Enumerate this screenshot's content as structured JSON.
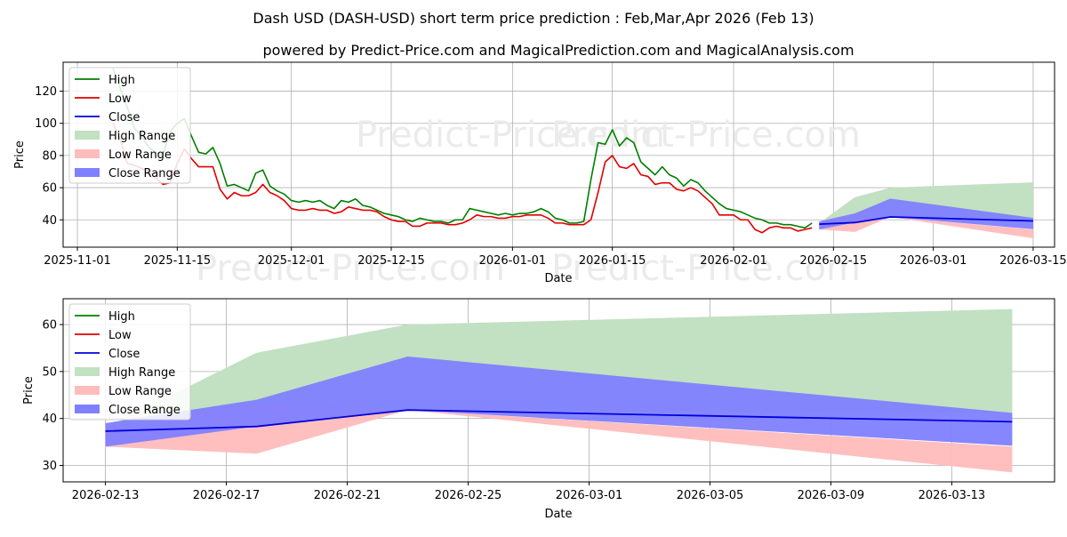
{
  "title": "Dash USD (DASH-USD) short term price prediction : Feb,Mar,Apr 2026 (Feb 13)",
  "subtitle": "powered by Predict-Price.com and MagicalPrediction.com and MagicalAnalysis.com",
  "watermark": "Predict-Price.com",
  "colors": {
    "high": "#007f00",
    "low": "#e00000",
    "close": "#0000dd",
    "high_range": "#c2e0c2",
    "low_range": "#ffbcbc",
    "close_range": "#8080ff"
  },
  "chart_data": [
    {
      "type": "line",
      "name": "full-history",
      "xlabel": "Date",
      "ylabel": "Price",
      "x_range": [
        "2025-10-30",
        "2026-03-18"
      ],
      "ylim": [
        23,
        138
      ],
      "x_ticks": [
        "2025-11-01",
        "2025-11-15",
        "2025-12-01",
        "2025-12-15",
        "2026-01-01",
        "2026-01-15",
        "2026-02-01",
        "2026-02-15",
        "2026-03-01",
        "2026-03-15"
      ],
      "y_ticks": [
        40,
        60,
        80,
        100,
        120
      ],
      "grid": true,
      "legend": [
        "High",
        "Low",
        "Close",
        "High Range",
        "Low Range",
        "Close Range"
      ],
      "legend_position": "top-left",
      "series": [
        {
          "name": "High",
          "points": [
            [
              "2025-11-06",
              134
            ],
            [
              "2025-11-07",
              122
            ],
            [
              "2025-11-08",
              110
            ],
            [
              "2025-11-09",
              97
            ],
            [
              "2025-11-10",
              92
            ],
            [
              "2025-11-11",
              85
            ],
            [
              "2025-11-12",
              82
            ],
            [
              "2025-11-13",
              80
            ],
            [
              "2025-11-14",
              95
            ],
            [
              "2025-11-15",
              100
            ],
            [
              "2025-11-16",
              103
            ],
            [
              "2025-11-17",
              92
            ],
            [
              "2025-11-18",
              82
            ],
            [
              "2025-11-19",
              81
            ],
            [
              "2025-11-20",
              85
            ],
            [
              "2025-11-21",
              75
            ],
            [
              "2025-11-22",
              61
            ],
            [
              "2025-11-23",
              62
            ],
            [
              "2025-11-24",
              60
            ],
            [
              "2025-11-25",
              58
            ],
            [
              "2025-11-26",
              69
            ],
            [
              "2025-11-27",
              71
            ],
            [
              "2025-11-28",
              61
            ],
            [
              "2025-11-29",
              58
            ],
            [
              "2025-11-30",
              56
            ],
            [
              "2025-12-01",
              52
            ],
            [
              "2025-12-02",
              51
            ],
            [
              "2025-12-03",
              52
            ],
            [
              "2025-12-04",
              51
            ],
            [
              "2025-12-05",
              52
            ],
            [
              "2025-12-06",
              49
            ],
            [
              "2025-12-07",
              47
            ],
            [
              "2025-12-08",
              52
            ],
            [
              "2025-12-09",
              51
            ],
            [
              "2025-12-10",
              53
            ],
            [
              "2025-12-11",
              49
            ],
            [
              "2025-12-12",
              48
            ],
            [
              "2025-12-13",
              46
            ],
            [
              "2025-12-14",
              44
            ],
            [
              "2025-12-15",
              43
            ],
            [
              "2025-12-16",
              42
            ],
            [
              "2025-12-17",
              40
            ],
            [
              "2025-12-18",
              39
            ],
            [
              "2025-12-19",
              41
            ],
            [
              "2025-12-20",
              40
            ],
            [
              "2025-12-21",
              39
            ],
            [
              "2025-12-22",
              39
            ],
            [
              "2025-12-23",
              38
            ],
            [
              "2025-12-24",
              40
            ],
            [
              "2025-12-25",
              40
            ],
            [
              "2025-12-26",
              47
            ],
            [
              "2025-12-27",
              46
            ],
            [
              "2025-12-28",
              45
            ],
            [
              "2025-12-29",
              44
            ],
            [
              "2025-12-30",
              43
            ],
            [
              "2025-12-31",
              44
            ],
            [
              "2026-01-01",
              43
            ],
            [
              "2026-01-02",
              44
            ],
            [
              "2026-01-03",
              44
            ],
            [
              "2026-01-04",
              45
            ],
            [
              "2026-01-05",
              47
            ],
            [
              "2026-01-06",
              45
            ],
            [
              "2026-01-07",
              41
            ],
            [
              "2026-01-08",
              40
            ],
            [
              "2026-01-09",
              38
            ],
            [
              "2026-01-10",
              38
            ],
            [
              "2026-01-11",
              39
            ],
            [
              "2026-01-12",
              65
            ],
            [
              "2026-01-13",
              88
            ],
            [
              "2026-01-14",
              87
            ],
            [
              "2026-01-15",
              96
            ],
            [
              "2026-01-16",
              86
            ],
            [
              "2026-01-17",
              91
            ],
            [
              "2026-01-18",
              88
            ],
            [
              "2026-01-19",
              76
            ],
            [
              "2026-01-20",
              72
            ],
            [
              "2026-01-21",
              68
            ],
            [
              "2026-01-22",
              73
            ],
            [
              "2026-01-23",
              68
            ],
            [
              "2026-01-24",
              66
            ],
            [
              "2026-01-25",
              61
            ],
            [
              "2026-01-26",
              65
            ],
            [
              "2026-01-27",
              63
            ],
            [
              "2026-01-28",
              58
            ],
            [
              "2026-01-29",
              54
            ],
            [
              "2026-01-30",
              50
            ],
            [
              "2026-01-31",
              47
            ],
            [
              "2026-02-01",
              46
            ],
            [
              "2026-02-02",
              45
            ],
            [
              "2026-02-03",
              43
            ],
            [
              "2026-02-04",
              41
            ],
            [
              "2026-02-05",
              40
            ],
            [
              "2026-02-06",
              38
            ],
            [
              "2026-02-07",
              38
            ],
            [
              "2026-02-08",
              37
            ],
            [
              "2026-02-09",
              37
            ],
            [
              "2026-02-10",
              36
            ],
            [
              "2026-02-11",
              35
            ],
            [
              "2026-02-12",
              38
            ]
          ]
        },
        {
          "name": "Low",
          "points": [
            [
              "2025-11-06",
              100
            ],
            [
              "2025-11-07",
              90
            ],
            [
              "2025-11-08",
              75
            ],
            [
              "2025-11-09",
              74
            ],
            [
              "2025-11-10",
              72
            ],
            [
              "2025-11-11",
              70
            ],
            [
              "2025-11-12",
              66
            ],
            [
              "2025-11-13",
              62
            ],
            [
              "2025-11-14",
              63
            ],
            [
              "2025-11-15",
              75
            ],
            [
              "2025-11-16",
              84
            ],
            [
              "2025-11-17",
              78
            ],
            [
              "2025-11-18",
              73
            ],
            [
              "2025-11-19",
              73
            ],
            [
              "2025-11-20",
              73
            ],
            [
              "2025-11-21",
              59
            ],
            [
              "2025-11-22",
              53
            ],
            [
              "2025-11-23",
              57
            ],
            [
              "2025-11-24",
              55
            ],
            [
              "2025-11-25",
              55
            ],
            [
              "2025-11-26",
              57
            ],
            [
              "2025-11-27",
              62
            ],
            [
              "2025-11-28",
              57
            ],
            [
              "2025-11-29",
              55
            ],
            [
              "2025-11-30",
              52
            ],
            [
              "2025-12-01",
              47
            ],
            [
              "2025-12-02",
              46
            ],
            [
              "2025-12-03",
              46
            ],
            [
              "2025-12-04",
              47
            ],
            [
              "2025-12-05",
              46
            ],
            [
              "2025-12-06",
              46
            ],
            [
              "2025-12-07",
              44
            ],
            [
              "2025-12-08",
              45
            ],
            [
              "2025-12-09",
              48
            ],
            [
              "2025-12-10",
              47
            ],
            [
              "2025-12-11",
              46
            ],
            [
              "2025-12-12",
              46
            ],
            [
              "2025-12-13",
              45
            ],
            [
              "2025-12-14",
              42
            ],
            [
              "2025-12-15",
              40
            ],
            [
              "2025-12-16",
              39
            ],
            [
              "2025-12-17",
              39
            ],
            [
              "2025-12-18",
              36
            ],
            [
              "2025-12-19",
              36
            ],
            [
              "2025-12-20",
              38
            ],
            [
              "2025-12-21",
              38
            ],
            [
              "2025-12-22",
              38
            ],
            [
              "2025-12-23",
              37
            ],
            [
              "2025-12-24",
              37
            ],
            [
              "2025-12-25",
              38
            ],
            [
              "2025-12-26",
              40
            ],
            [
              "2025-12-27",
              43
            ],
            [
              "2025-12-28",
              42
            ],
            [
              "2025-12-29",
              42
            ],
            [
              "2025-12-30",
              41
            ],
            [
              "2025-12-31",
              41
            ],
            [
              "2026-01-01",
              42
            ],
            [
              "2026-01-02",
              42
            ],
            [
              "2026-01-03",
              43
            ],
            [
              "2026-01-04",
              43
            ],
            [
              "2026-01-05",
              43
            ],
            [
              "2026-01-06",
              41
            ],
            [
              "2026-01-07",
              38
            ],
            [
              "2026-01-08",
              38
            ],
            [
              "2026-01-09",
              37
            ],
            [
              "2026-01-10",
              37
            ],
            [
              "2026-01-11",
              37
            ],
            [
              "2026-01-12",
              40
            ],
            [
              "2026-01-13",
              57
            ],
            [
              "2026-01-14",
              76
            ],
            [
              "2026-01-15",
              80
            ],
            [
              "2026-01-16",
              73
            ],
            [
              "2026-01-17",
              72
            ],
            [
              "2026-01-18",
              75
            ],
            [
              "2026-01-19",
              68
            ],
            [
              "2026-01-20",
              67
            ],
            [
              "2026-01-21",
              62
            ],
            [
              "2026-01-22",
              63
            ],
            [
              "2026-01-23",
              63
            ],
            [
              "2026-01-24",
              59
            ],
            [
              "2026-01-25",
              58
            ],
            [
              "2026-01-26",
              60
            ],
            [
              "2026-01-27",
              58
            ],
            [
              "2026-01-28",
              54
            ],
            [
              "2026-01-29",
              50
            ],
            [
              "2026-01-30",
              43
            ],
            [
              "2026-01-31",
              43
            ],
            [
              "2026-02-01",
              43
            ],
            [
              "2026-02-02",
              40
            ],
            [
              "2026-02-03",
              40
            ],
            [
              "2026-02-04",
              34
            ],
            [
              "2026-02-05",
              32
            ],
            [
              "2026-02-06",
              35
            ],
            [
              "2026-02-07",
              36
            ],
            [
              "2026-02-08",
              35
            ],
            [
              "2026-02-09",
              35
            ],
            [
              "2026-02-10",
              33
            ],
            [
              "2026-02-11",
              34
            ],
            [
              "2026-02-12",
              35
            ]
          ]
        }
      ]
    },
    {
      "type": "area",
      "name": "forecast",
      "xlabel": "Date",
      "ylabel": "Price",
      "x_range": [
        "2026-02-11.6",
        "2026-03-16.4"
      ],
      "ylim": [
        26.5,
        65.5
      ],
      "x_ticks": [
        "2026-02-13",
        "2026-02-17",
        "2026-02-21",
        "2026-02-25",
        "2026-03-01",
        "2026-03-05",
        "2026-03-09",
        "2026-03-13"
      ],
      "y_ticks": [
        30,
        40,
        50,
        60
      ],
      "grid": true,
      "legend": [
        "High",
        "Low",
        "Close",
        "High Range",
        "Low Range",
        "Close Range"
      ],
      "legend_position": "top-left",
      "dates": [
        "2026-02-13",
        "2026-02-18",
        "2026-02-23",
        "2026-03-15"
      ],
      "high_range": {
        "upper": [
          38.0,
          54.0,
          60.0,
          63.3
        ],
        "lower": [
          34.0,
          38.3,
          41.8,
          41.2
        ]
      },
      "low_range": {
        "upper": [
          38.0,
          43.5,
          41.8,
          34.0
        ],
        "lower": [
          34.0,
          32.5,
          41.8,
          28.5
        ]
      },
      "close_range": {
        "upper": [
          39.0,
          44.0,
          53.2,
          41.2
        ],
        "lower": [
          34.0,
          38.3,
          41.8,
          34.2
        ]
      },
      "close": [
        37.3,
        38.3,
        41.8,
        39.3
      ]
    }
  ]
}
